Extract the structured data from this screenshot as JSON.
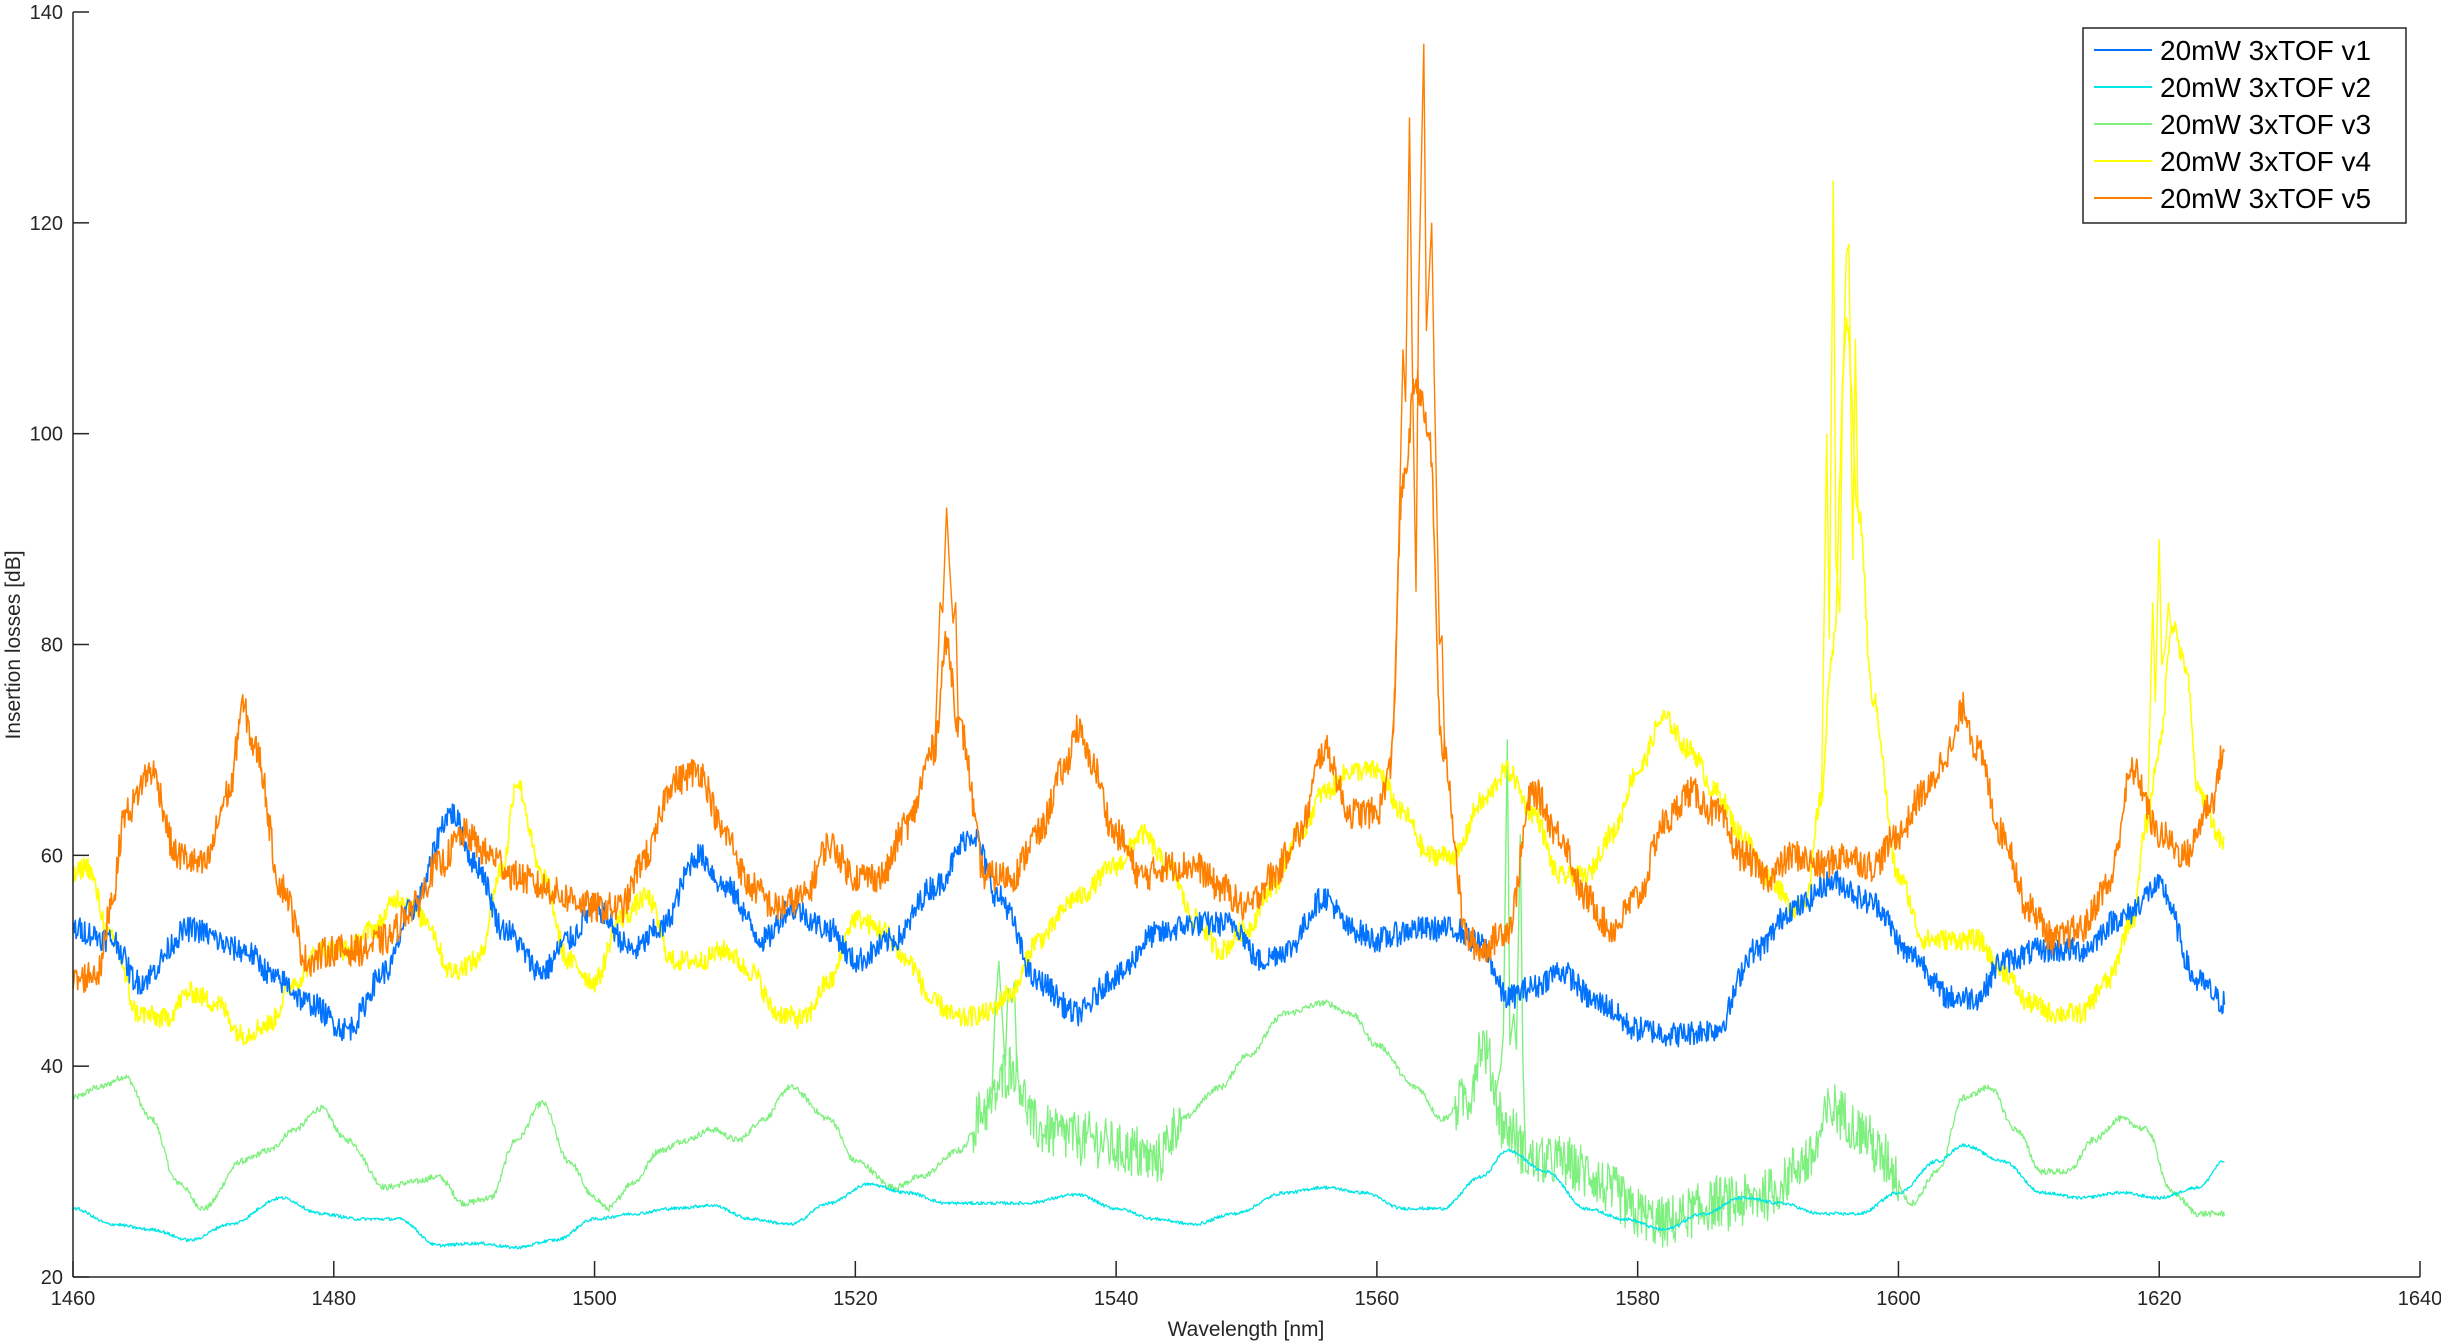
{
  "chart_data": {
    "type": "line",
    "title": "",
    "xlabel": "Wavelength [nm]",
    "ylabel": "Insertion losses [dB]",
    "xlim": [
      1460,
      1640
    ],
    "ylim": [
      20,
      140
    ],
    "xticks": [
      1460,
      1480,
      1500,
      1520,
      1540,
      1560,
      1580,
      1600,
      1620,
      1640
    ],
    "yticks": [
      20,
      40,
      60,
      80,
      100,
      120,
      140
    ],
    "grid": false,
    "legend_position": "top-right",
    "series": [
      {
        "name": "20mW 3xTOF v1",
        "color": "#0072ff",
        "noise": 1.2,
        "x": [
          1460,
          1463,
          1465,
          1469,
          1473,
          1476,
          1478,
          1481,
          1484,
          1486,
          1489,
          1491,
          1493,
          1496,
          1498,
          1500,
          1503,
          1505,
          1508,
          1510,
          1513,
          1515,
          1518,
          1520,
          1523,
          1526,
          1529,
          1531,
          1534,
          1537,
          1540,
          1543,
          1546,
          1549,
          1551,
          1553,
          1556,
          1558,
          1560,
          1563,
          1566,
          1568,
          1570,
          1572,
          1574,
          1577,
          1580,
          1583,
          1586,
          1589,
          1592,
          1595,
          1598,
          1601,
          1604,
          1606,
          1608,
          1611,
          1614,
          1617,
          1620,
          1623,
          1625
        ],
        "y": [
          53,
          52,
          48,
          53,
          51,
          48,
          46,
          43.5,
          49,
          55,
          64,
          59,
          53,
          49,
          52,
          55,
          51,
          53,
          60,
          57,
          52,
          55,
          53,
          50,
          52,
          57,
          62,
          56,
          48,
          45,
          48.5,
          52.5,
          53.5,
          53.5,
          50,
          51,
          56,
          53,
          52,
          53,
          53,
          51.5,
          46.5,
          47.5,
          49,
          46,
          43.5,
          43,
          43.5,
          51,
          55,
          57.5,
          55.5,
          50.5,
          46.5,
          46.5,
          50,
          51,
          51,
          54,
          57,
          48,
          46
        ]
      },
      {
        "name": "20mW 3xTOF v2",
        "color": "#00e5e5",
        "noise": 0.15,
        "x": [
          1460,
          1463,
          1466,
          1469,
          1472,
          1476,
          1479,
          1482,
          1485,
          1488,
          1491,
          1494,
          1497,
          1500,
          1503,
          1506,
          1509,
          1512,
          1515,
          1518,
          1521,
          1524,
          1527,
          1530,
          1533,
          1537,
          1540,
          1543,
          1546,
          1549,
          1553,
          1556,
          1559,
          1562,
          1565,
          1568,
          1570,
          1573,
          1576,
          1579,
          1582,
          1585,
          1588,
          1591,
          1594,
          1597,
          1600,
          1603,
          1605,
          1608,
          1611,
          1614,
          1617,
          1620,
          1623,
          1625
        ],
        "y": [
          26.5,
          25,
          24.5,
          23.5,
          25,
          27.5,
          26,
          25.5,
          25.5,
          23,
          23.2,
          22.8,
          23.5,
          25.5,
          26,
          26.5,
          26.8,
          25.5,
          25,
          27,
          28.8,
          28,
          27,
          27,
          27,
          27.8,
          26.5,
          25.5,
          25,
          26,
          28,
          28.5,
          28,
          26.5,
          26.5,
          29.5,
          32,
          30,
          26.5,
          25.5,
          24.5,
          26,
          27.5,
          27,
          26,
          26,
          28,
          31,
          32.5,
          31,
          28,
          27.5,
          28,
          27.5,
          28.5,
          31
        ]
      },
      {
        "name": "20mW 3xTOF v3",
        "color": "#7ff07f",
        "noise": 0.3,
        "x": [
          1460,
          1462,
          1464,
          1466,
          1468,
          1470,
          1473,
          1475,
          1477,
          1479,
          1481,
          1484,
          1486,
          1488,
          1490,
          1492,
          1494,
          1496,
          1498,
          1500,
          1501,
          1503,
          1505,
          1507,
          1509,
          1511,
          1513,
          1515,
          1518,
          1520,
          1523,
          1525,
          1528,
          1530,
          1532,
          1534,
          1536,
          1538,
          1541,
          1543,
          1545,
          1548,
          1550,
          1553,
          1556,
          1558,
          1560,
          1563,
          1565,
          1567,
          1568,
          1570,
          1572,
          1574,
          1576,
          1578,
          1580,
          1582,
          1584,
          1586,
          1588,
          1590,
          1593,
          1595,
          1597,
          1599,
          1601,
          1603,
          1605,
          1607,
          1609,
          1611,
          1613,
          1615,
          1617,
          1619,
          1621,
          1623,
          1625
        ],
        "y": [
          37,
          38,
          39,
          35,
          29,
          26.5,
          31,
          32,
          34,
          36,
          33,
          28.5,
          29,
          29.5,
          27,
          27.5,
          33,
          36.5,
          31,
          27.5,
          26.5,
          29,
          32,
          33,
          34,
          33,
          35,
          38,
          35,
          31,
          28.5,
          29.5,
          32,
          36,
          40,
          34,
          33.5,
          33,
          32,
          31,
          35,
          38,
          41,
          45,
          46,
          45,
          42,
          38,
          35,
          37,
          42,
          34,
          31,
          31,
          30,
          28,
          26,
          25,
          26,
          27,
          27,
          28,
          31,
          36,
          34,
          31,
          27,
          30,
          37,
          38,
          34,
          30,
          30,
          33,
          35,
          34,
          28,
          26,
          26
        ]
      },
      {
        "name": "20mW 3xTOF v4",
        "color": "#ffff00",
        "noise": 1.0,
        "x": [
          1460,
          1461,
          1463,
          1465,
          1467,
          1469,
          1471,
          1473,
          1475,
          1477,
          1479,
          1481,
          1483,
          1485,
          1487,
          1489,
          1491,
          1493,
          1494,
          1496,
          1498,
          1500,
          1502,
          1504,
          1506,
          1508,
          1510,
          1512,
          1514,
          1516,
          1518,
          1520,
          1522,
          1524,
          1526,
          1528,
          1530,
          1532,
          1534,
          1537,
          1540,
          1542,
          1544,
          1546,
          1548,
          1550,
          1552,
          1554,
          1556,
          1558,
          1560,
          1562,
          1564,
          1566,
          1568,
          1570,
          1572,
          1574,
          1576,
          1578,
          1580,
          1582,
          1584,
          1586,
          1588,
          1590,
          1592,
          1593,
          1594,
          1595,
          1596,
          1597,
          1598,
          1600,
          1602,
          1604,
          1606,
          1608,
          1610,
          1612,
          1614,
          1616,
          1618,
          1619,
          1620,
          1621,
          1622,
          1623,
          1625
        ],
        "y": [
          58,
          59,
          52,
          45,
          44.5,
          47,
          46,
          43,
          44,
          48,
          51,
          51,
          53,
          56,
          54,
          49,
          50,
          59,
          67,
          58,
          50,
          48,
          54,
          56,
          50,
          50,
          51,
          49,
          45,
          44.5,
          48,
          54,
          53,
          50,
          46,
          44.5,
          45,
          47,
          52,
          56,
          59,
          62,
          59,
          54,
          51,
          53,
          57,
          62,
          66,
          68,
          68,
          64,
          60,
          60,
          65,
          68,
          64,
          58,
          58,
          62,
          68,
          73,
          70,
          66,
          62,
          58,
          55,
          56,
          65,
          80,
          110,
          92,
          75,
          58,
          52,
          52,
          52,
          49,
          46,
          45,
          45,
          48,
          54,
          63,
          70,
          82,
          78,
          66,
          61
        ]
      },
      {
        "name": "20mW 3xTOF v5",
        "color": "#ff7f00",
        "noise": 1.5,
        "x": [
          1460,
          1462,
          1463,
          1464,
          1466,
          1468,
          1470,
          1472,
          1473,
          1474,
          1476,
          1478,
          1480,
          1482,
          1484,
          1486,
          1488,
          1490,
          1492,
          1494,
          1496,
          1498,
          1500,
          1502,
          1504,
          1506,
          1508,
          1510,
          1512,
          1514,
          1516,
          1518,
          1520,
          1522,
          1524,
          1526,
          1527,
          1528,
          1530,
          1532,
          1534,
          1536,
          1537,
          1538,
          1540,
          1542,
          1544,
          1546,
          1548,
          1550,
          1552,
          1554,
          1556,
          1558,
          1560,
          1561,
          1562,
          1563,
          1564,
          1565,
          1567,
          1568,
          1570,
          1572,
          1574,
          1576,
          1578,
          1580,
          1582,
          1584,
          1586,
          1588,
          1590,
          1592,
          1594,
          1596,
          1598,
          1600,
          1602,
          1604,
          1605,
          1606,
          1608,
          1610,
          1612,
          1614,
          1616,
          1618,
          1620,
          1622,
          1624,
          1625
        ],
        "y": [
          48,
          49,
          56,
          64,
          68,
          60,
          59,
          66,
          74,
          70,
          57,
          50,
          51,
          51,
          52,
          55,
          59,
          62,
          60,
          58,
          57,
          56,
          55,
          55,
          60,
          67,
          68,
          62,
          57,
          55,
          56,
          61,
          58,
          58,
          63,
          70,
          80,
          72,
          58,
          58,
          62,
          68,
          72,
          69,
          62,
          58,
          59,
          59,
          57,
          55,
          58,
          62,
          70,
          64,
          64,
          68,
          95,
          105,
          100,
          70,
          52,
          51,
          53,
          66,
          62,
          56,
          53,
          56,
          63,
          66,
          64,
          60,
          58,
          60,
          59,
          60,
          59,
          62,
          66,
          70,
          74,
          70,
          62,
          55,
          52,
          53,
          57,
          68,
          62,
          60,
          65,
          70
        ]
      }
    ],
    "peaks": [
      {
        "series": 4,
        "x": [
          1561.4,
          1562.0,
          1562.5,
          1563.0,
          1563.6,
          1564.2,
          1564.8
        ],
        "y": [
          75,
          108,
          130,
          85,
          137,
          120,
          80
        ]
      },
      {
        "series": 4,
        "x": [
          1526.5,
          1527.0,
          1527.5
        ],
        "y": [
          84,
          93,
          82
        ]
      },
      {
        "series": 3,
        "x": [
          1594.5,
          1595.0,
          1595.5,
          1596.0,
          1596.5
        ],
        "y": [
          100,
          124,
          83,
          117,
          88
        ]
      },
      {
        "series": 3,
        "x": [
          1619.5,
          1620.0,
          1620.5
        ],
        "y": [
          84,
          90,
          80
        ]
      },
      {
        "series": 2,
        "x": [
          1569.5,
          1570.0,
          1570.5,
          1571.0
        ],
        "y": [
          40,
          71,
          45,
          62
        ]
      },
      {
        "series": 2,
        "x": [
          1530.5,
          1531.0,
          1531.5,
          1532.0
        ],
        "y": [
          38,
          50,
          40,
          46
        ]
      }
    ]
  }
}
